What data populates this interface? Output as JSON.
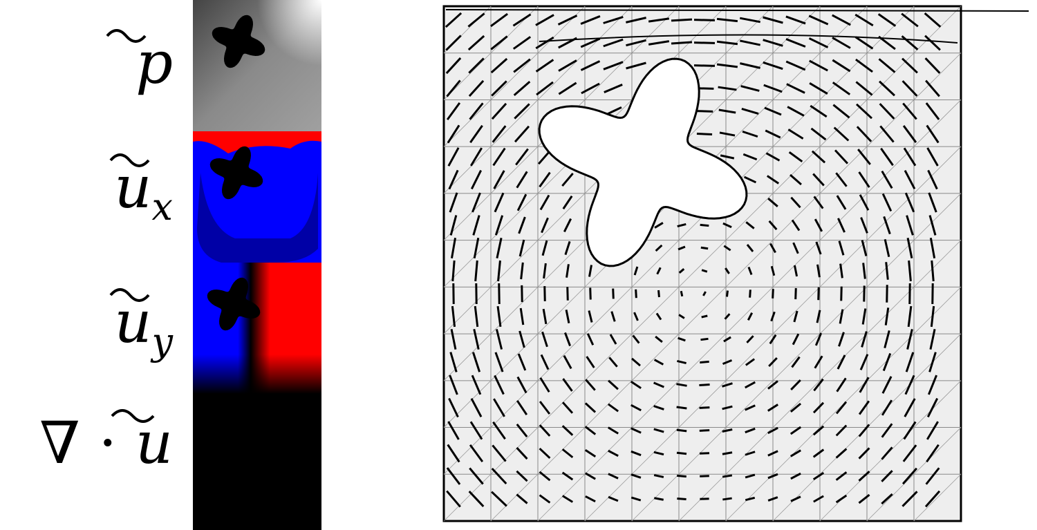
{
  "labels": [
    {
      "symbol": "p"
    },
    {
      "symbol": "u",
      "subscript": "x"
    },
    {
      "symbol": "u",
      "subscript": "y"
    },
    {
      "prefix": "∇ ·",
      "symbol": "u"
    }
  ]
}
